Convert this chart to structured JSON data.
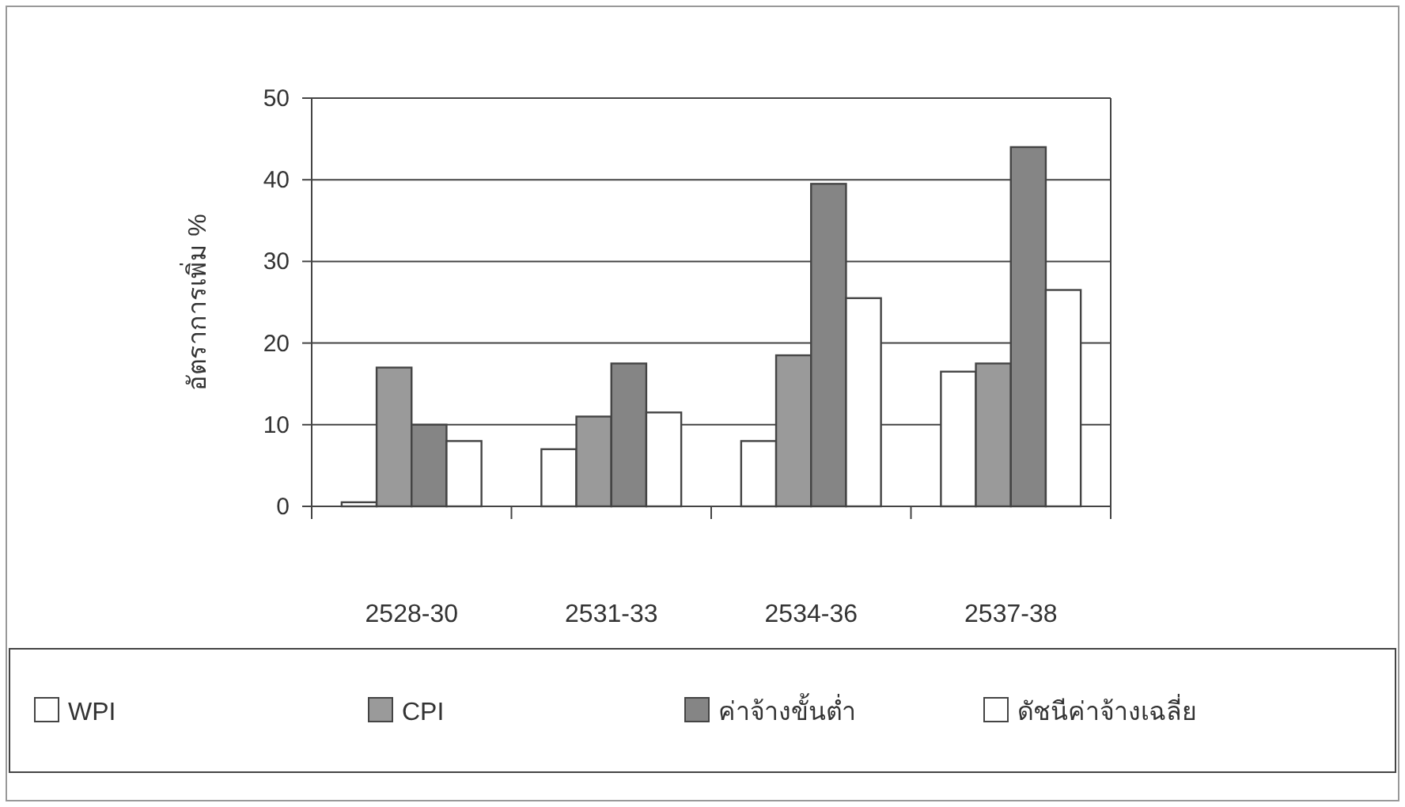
{
  "chart_data": {
    "type": "bar",
    "ylabel": "อัตราการเพิ่ม %",
    "categories": [
      "2528-30",
      "2531-33",
      "2534-36",
      "2537-38"
    ],
    "series": [
      {
        "name": "WPI",
        "color": "#ffffff",
        "values": [
          0.5,
          7,
          8,
          16.5
        ]
      },
      {
        "name": "CPI",
        "color": "#9a9a9a",
        "values": [
          17,
          11,
          18.5,
          17.5
        ]
      },
      {
        "name": "ค่าจ้างขั้นต่ำ",
        "color": "#858585",
        "values": [
          10,
          17.5,
          39.5,
          44
        ]
      },
      {
        "name": "ดัชนีค่าจ้างเฉลี่ย",
        "color": "#ffffff",
        "values": [
          8,
          11.5,
          25.5,
          26.5
        ]
      }
    ],
    "ylim": [
      0,
      50
    ],
    "yticks": [
      0,
      10,
      20,
      30,
      40,
      50
    ],
    "grid": "y",
    "legend": "bottom"
  }
}
